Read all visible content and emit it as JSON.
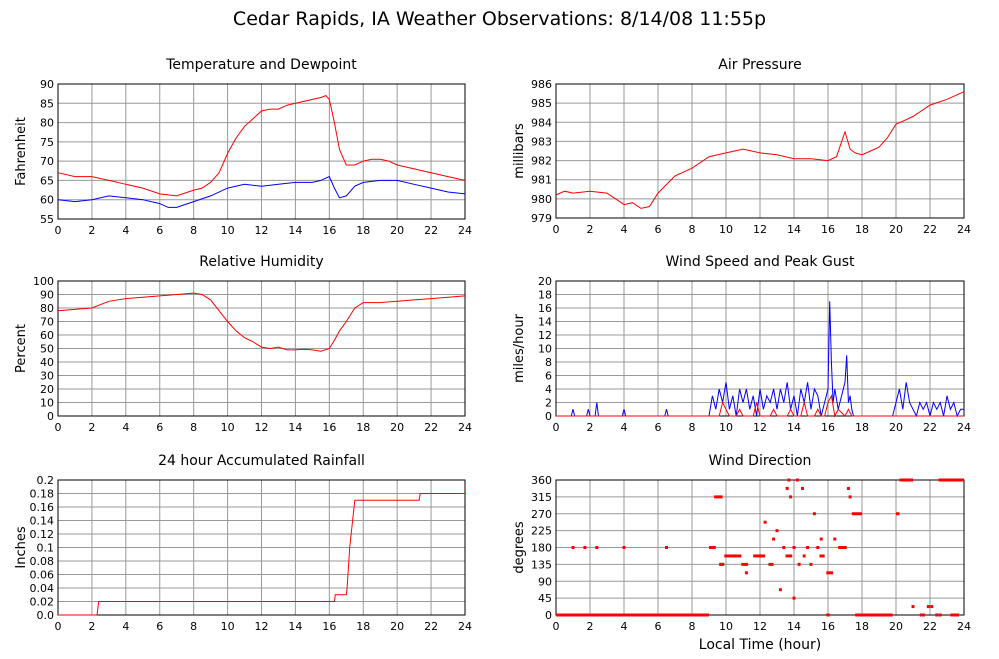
{
  "title": "Cedar Rapids, IA Weather Observations: 8/14/08 11:55p",
  "footer_xlabel": "Local Time (hour)",
  "colors": {
    "red": "#ff0000",
    "blue": "#0000ff",
    "grid": "#999999",
    "frame": "#000000"
  },
  "chart_data": [
    {
      "id": "temp",
      "type": "line",
      "title": "Temperature and Dewpoint",
      "ylabel": "Fahrenheit",
      "xlim": [
        0,
        24
      ],
      "ylim": [
        55,
        90
      ],
      "yticks": [
        55,
        60,
        65,
        70,
        75,
        80,
        85,
        90
      ],
      "xticks": [
        0,
        2,
        4,
        6,
        8,
        10,
        12,
        14,
        16,
        18,
        20,
        22,
        24
      ],
      "grid": true,
      "series": [
        {
          "color": "red",
          "style": "line",
          "x": [
            0,
            1,
            2,
            3,
            4,
            5,
            6,
            7,
            8,
            8.5,
            9,
            9.5,
            10,
            10.5,
            11,
            11.5,
            12,
            12.5,
            13,
            13.5,
            14,
            14.5,
            15,
            15.5,
            15.8,
            16,
            16.3,
            16.6,
            17,
            17.5,
            18,
            18.5,
            19,
            19.5,
            20,
            21,
            22,
            23,
            24
          ],
          "y": [
            67,
            66,
            66,
            65,
            64,
            63,
            61.5,
            61,
            62.5,
            63,
            64.5,
            67,
            72,
            76,
            79,
            81,
            83,
            83.5,
            83.5,
            84.5,
            85,
            85.5,
            86,
            86.5,
            87,
            86,
            80,
            73,
            69,
            69,
            70,
            70.5,
            70.5,
            70,
            69,
            68,
            67,
            66,
            65
          ]
        },
        {
          "color": "blue",
          "style": "line",
          "x": [
            0,
            1,
            2,
            3,
            4,
            5,
            6,
            6.5,
            7,
            8,
            9,
            10,
            11,
            12,
            13,
            14,
            15,
            15.5,
            16,
            16.3,
            16.6,
            17,
            17.5,
            18,
            19,
            20,
            21,
            22,
            23,
            24
          ],
          "y": [
            60,
            59.5,
            60,
            61,
            60.5,
            60,
            59,
            58,
            58,
            59.5,
            61,
            63,
            64,
            63.5,
            64,
            64.5,
            64.5,
            65,
            66,
            63,
            60.5,
            61,
            63.5,
            64.5,
            65,
            65,
            64,
            63,
            62,
            61.5
          ]
        }
      ]
    },
    {
      "id": "pressure",
      "type": "line",
      "title": "Air Pressure",
      "ylabel": "millibars",
      "xlim": [
        0,
        24
      ],
      "ylim": [
        979,
        986
      ],
      "yticks": [
        979,
        980,
        981,
        982,
        983,
        984,
        985,
        986
      ],
      "xticks": [
        0,
        2,
        4,
        6,
        8,
        10,
        12,
        14,
        16,
        18,
        20,
        22,
        24
      ],
      "grid": true,
      "series": [
        {
          "color": "red",
          "style": "line",
          "x": [
            0,
            0.5,
            1,
            2,
            3,
            4,
            4.5,
            5,
            5.5,
            6,
            7,
            8,
            9,
            10,
            11,
            12,
            13,
            14,
            15,
            16,
            16.5,
            17,
            17.3,
            17.6,
            18,
            18.5,
            19,
            19.5,
            20,
            20.5,
            21,
            22,
            23,
            24
          ],
          "y": [
            980.2,
            980.4,
            980.3,
            980.4,
            980.3,
            979.7,
            979.8,
            979.5,
            979.6,
            980.3,
            981.2,
            981.6,
            982.2,
            982.4,
            982.6,
            982.4,
            982.3,
            982.1,
            982.1,
            982,
            982.2,
            983.5,
            982.6,
            982.4,
            982.3,
            982.5,
            982.7,
            983.2,
            983.9,
            984.1,
            984.3,
            984.9,
            985.2,
            985.6
          ]
        }
      ]
    },
    {
      "id": "humidity",
      "type": "line",
      "title": "Relative Humidity",
      "ylabel": "Percent",
      "xlim": [
        0,
        24
      ],
      "ylim": [
        0,
        100
      ],
      "yticks": [
        0,
        10,
        20,
        30,
        40,
        50,
        60,
        70,
        80,
        90,
        100
      ],
      "xticks": [
        0,
        2,
        4,
        6,
        8,
        10,
        12,
        14,
        16,
        18,
        20,
        22,
        24
      ],
      "grid": true,
      "series": [
        {
          "color": "red",
          "style": "line",
          "x": [
            0,
            1,
            2,
            3,
            4,
            5,
            6,
            7,
            8,
            8.5,
            9,
            9.5,
            10,
            10.5,
            11,
            11.5,
            12,
            12.5,
            13,
            13.5,
            14,
            14.5,
            15,
            15.5,
            16,
            16.3,
            16.6,
            17,
            17.5,
            18,
            19,
            20,
            21,
            22,
            23,
            24
          ],
          "y": [
            78,
            79,
            80,
            85,
            87,
            88,
            89,
            90,
            91,
            90,
            86,
            78,
            70,
            63,
            58,
            55,
            51,
            50,
            51,
            49,
            49,
            49.5,
            49,
            48,
            50,
            56,
            63,
            70,
            80,
            84,
            84,
            85,
            86,
            87,
            88,
            89
          ]
        }
      ]
    },
    {
      "id": "wind",
      "type": "line",
      "title": "Wind Speed and Peak Gust",
      "ylabel": "miles/hour",
      "xlim": [
        0,
        24
      ],
      "ylim": [
        0,
        20
      ],
      "yticks": [
        0,
        2,
        4,
        6,
        8,
        10,
        12,
        14,
        16,
        18,
        20
      ],
      "xticks": [
        0,
        2,
        4,
        6,
        8,
        10,
        12,
        14,
        16,
        18,
        20,
        22,
        24
      ],
      "grid": true,
      "series": [
        {
          "color": "blue",
          "style": "line",
          "x": [
            0,
            0.9,
            1,
            1.1,
            1.8,
            1.9,
            2.0,
            2.3,
            2.4,
            2.5,
            3.9,
            4.0,
            4.1,
            6.4,
            6.5,
            6.6,
            9.0,
            9.2,
            9.4,
            9.6,
            9.8,
            10.0,
            10.2,
            10.4,
            10.6,
            10.8,
            11.0,
            11.2,
            11.4,
            11.6,
            11.8,
            12.0,
            12.2,
            12.4,
            12.6,
            12.8,
            13.0,
            13.2,
            13.4,
            13.6,
            13.8,
            14.0,
            14.2,
            14.4,
            14.6,
            14.8,
            15.0,
            15.2,
            15.4,
            15.6,
            15.8,
            16.0,
            16.1,
            16.2,
            16.3,
            16.4,
            16.6,
            16.8,
            17.0,
            17.1,
            17.2,
            17.3,
            17.4,
            17.5,
            19.8,
            20.0,
            20.2,
            20.4,
            20.6,
            20.8,
            21.0,
            21.2,
            21.4,
            21.6,
            21.8,
            22.0,
            22.2,
            22.4,
            22.6,
            22.8,
            23.0,
            23.2,
            23.4,
            23.6,
            23.8,
            24.0
          ],
          "y": [
            0,
            0,
            1,
            0,
            0,
            1,
            0,
            0,
            2,
            0,
            0,
            1,
            0,
            0,
            1,
            0,
            0,
            3,
            1,
            4,
            2,
            5,
            1,
            3,
            0,
            4,
            2,
            4,
            1,
            3,
            0,
            4,
            1,
            3,
            2,
            4,
            1,
            4,
            2,
            5,
            1,
            3,
            0,
            4,
            2,
            5,
            1,
            4,
            3,
            0,
            2,
            4,
            17,
            8,
            2,
            4,
            1,
            3,
            5,
            9,
            2,
            3,
            1,
            0,
            0,
            2,
            4,
            1,
            5,
            2,
            1,
            0,
            2,
            1,
            2,
            0,
            2,
            1,
            2,
            0,
            3,
            1,
            2,
            0,
            1,
            1
          ]
        },
        {
          "color": "red",
          "style": "line",
          "x": [
            0,
            9.6,
            9.8,
            10.0,
            10.2,
            10.6,
            10.8,
            11.0,
            11.6,
            11.8,
            12.0,
            12.6,
            12.8,
            13.0,
            13.6,
            13.8,
            14.0,
            14.4,
            14.6,
            14.8,
            15.2,
            15.4,
            15.6,
            15.8,
            16.0,
            16.2,
            16.4,
            16.6,
            17.0,
            17.2,
            17.4,
            24.0
          ],
          "y": [
            0,
            0,
            2,
            1,
            0,
            0,
            1,
            0,
            0,
            2,
            0,
            0,
            1,
            0,
            0,
            1,
            0,
            0,
            2,
            0,
            0,
            1,
            0,
            0,
            2,
            3,
            0,
            1,
            0,
            1,
            0,
            0
          ]
        }
      ]
    },
    {
      "id": "rain",
      "type": "line",
      "title": "24 hour Accumulated Rainfall",
      "ylabel": "Inches",
      "xlim": [
        0,
        24
      ],
      "ylim": [
        0,
        0.2
      ],
      "yticks": [
        0.0,
        0.02,
        0.04,
        0.06,
        0.08,
        0.1,
        0.12,
        0.14,
        0.16,
        0.18,
        0.2
      ],
      "ytick_labels": [
        "0.0",
        "0.02",
        "0.04",
        "0.06",
        "0.08",
        "0.1",
        "0.12",
        "0.14",
        "0.16",
        "0.18",
        "0.2"
      ],
      "xticks": [
        0,
        2,
        4,
        6,
        8,
        10,
        12,
        14,
        16,
        18,
        20,
        22,
        24
      ],
      "grid": true,
      "series": [
        {
          "color": "red",
          "style": "line",
          "x": [
            0,
            2.3,
            2.4,
            16.3,
            16.35,
            17.0,
            17.05,
            17.2,
            17.5,
            17.6,
            21.3,
            21.35,
            24
          ],
          "y": [
            0,
            0,
            0.02,
            0.02,
            0.03,
            0.03,
            0.04,
            0.1,
            0.17,
            0.17,
            0.17,
            0.18,
            0.18
          ]
        }
      ]
    },
    {
      "id": "direction",
      "type": "scatter",
      "title": "Wind Direction",
      "ylabel": "degrees",
      "xlabel": "Local Time (hour)",
      "xlim": [
        0,
        24
      ],
      "ylim": [
        0,
        360
      ],
      "yticks": [
        0,
        45,
        90,
        135,
        180,
        225,
        270,
        315,
        360
      ],
      "xticks": [
        0,
        2,
        4,
        6,
        8,
        10,
        12,
        14,
        16,
        18,
        20,
        22,
        24
      ],
      "grid": true,
      "series": [
        {
          "color": "red",
          "style": "points",
          "segments": [
            [
              0,
              9.0,
              0
            ],
            [
              9.0,
              9.4,
              180
            ],
            [
              9.3,
              9.8,
              315
            ],
            [
              9.6,
              9.9,
              135
            ],
            [
              9.9,
              10.9,
              157.5
            ],
            [
              10.9,
              11.3,
              135
            ],
            [
              11.6,
              12.3,
              157.5
            ],
            [
              12.5,
              12.8,
              135
            ],
            [
              13.5,
              13.9,
              157.5
            ],
            [
              15.5,
              15.8,
              157.5
            ],
            [
              15.9,
              16.3,
              112.5
            ],
            [
              16.6,
              17.1,
              180
            ],
            [
              17.4,
              18.0,
              270
            ],
            [
              15.9,
              16.1,
              0
            ],
            [
              17.6,
              19.8,
              0
            ],
            [
              20.0,
              20.2,
              270
            ],
            [
              20.2,
              21.0,
              360
            ],
            [
              21.4,
              21.7,
              0
            ],
            [
              22.5,
              24.0,
              360
            ],
            [
              23.2,
              23.7,
              0
            ]
          ],
          "points": [
            [
              1.0,
              180
            ],
            [
              1.7,
              180
            ],
            [
              2.4,
              180
            ],
            [
              4.0,
              180
            ],
            [
              6.5,
              180
            ],
            [
              9.7,
              135
            ],
            [
              10.5,
              157.5
            ],
            [
              11.2,
              112.5
            ],
            [
              12.0,
              157.5
            ],
            [
              12.3,
              247.5
            ],
            [
              12.8,
              202.5
            ],
            [
              13.0,
              225
            ],
            [
              13.2,
              67.5
            ],
            [
              13.4,
              180
            ],
            [
              13.6,
              337.5
            ],
            [
              13.7,
              360
            ],
            [
              13.8,
              315
            ],
            [
              14.0,
              180
            ],
            [
              14.2,
              360
            ],
            [
              14.3,
              135
            ],
            [
              14.5,
              337.5
            ],
            [
              14.6,
              157.5
            ],
            [
              14.8,
              180
            ],
            [
              15.0,
              135
            ],
            [
              15.2,
              270
            ],
            [
              15.4,
              180
            ],
            [
              14.0,
              45
            ],
            [
              15.6,
              202.5
            ],
            [
              16.4,
              202.5
            ],
            [
              17.2,
              337.5
            ],
            [
              17.3,
              315
            ],
            [
              21.0,
              22.5
            ],
            [
              21.9,
              22.5
            ],
            [
              22.1,
              22.5
            ],
            [
              22.4,
              0
            ],
            [
              22.6,
              0
            ]
          ]
        }
      ]
    }
  ]
}
